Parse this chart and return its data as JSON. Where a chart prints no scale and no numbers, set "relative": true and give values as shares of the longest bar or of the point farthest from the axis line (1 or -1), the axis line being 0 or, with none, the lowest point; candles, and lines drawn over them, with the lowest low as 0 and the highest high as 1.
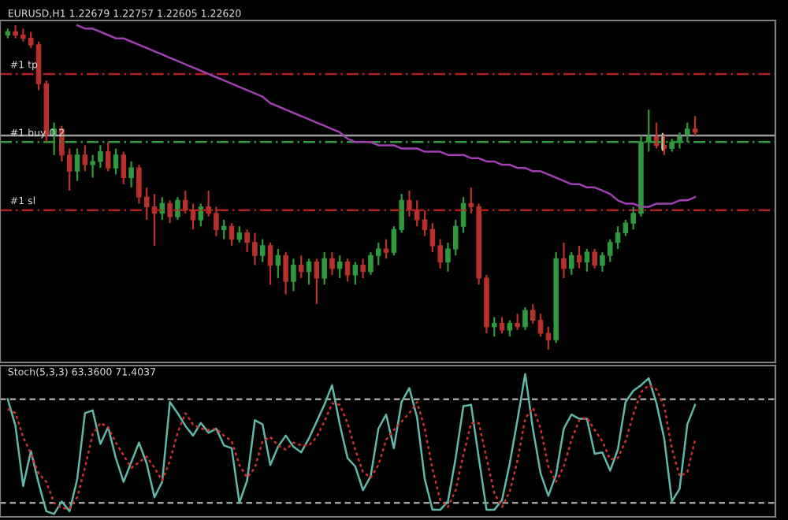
{
  "chart_data": [
    {
      "type": "candlestick",
      "title": "EURUSD,H1 1.22679 1.22757 1.22605 1.22620",
      "relative": true,
      "legend": false,
      "grid": false,
      "categories": [
        null,
        null,
        null,
        null,
        null,
        null,
        null,
        null,
        null,
        null,
        null,
        null,
        null,
        null,
        null,
        null,
        null,
        null,
        null,
        null,
        null,
        null,
        null,
        null,
        null,
        null,
        null,
        null,
        null,
        null,
        null,
        null,
        null,
        null,
        null,
        null,
        null,
        null,
        null,
        null,
        null,
        null,
        null,
        null,
        null,
        null,
        null,
        null,
        null,
        null,
        null,
        null,
        null,
        null,
        null,
        null,
        null,
        null,
        null,
        null,
        null,
        null,
        null,
        null,
        null,
        null,
        null,
        null,
        null,
        null,
        null,
        null,
        null,
        null,
        null,
        null,
        null,
        null,
        null,
        null,
        null,
        null,
        null,
        null,
        null,
        null,
        null,
        null,
        null,
        null
      ],
      "ohlc": [
        [
          0.97,
          0.99,
          0.96,
          0.98
        ],
        [
          0.98,
          1.0,
          0.96,
          0.97
        ],
        [
          0.97,
          0.99,
          0.95,
          0.96
        ],
        [
          0.96,
          0.98,
          0.93,
          0.94
        ],
        [
          0.94,
          0.95,
          0.8,
          0.82
        ],
        [
          0.82,
          0.83,
          0.64,
          0.66
        ],
        [
          0.66,
          0.7,
          0.6,
          0.68
        ],
        [
          0.68,
          0.69,
          0.58,
          0.6
        ],
        [
          0.6,
          0.62,
          0.49,
          0.55
        ],
        [
          0.55,
          0.62,
          0.52,
          0.6
        ],
        [
          0.6,
          0.63,
          0.55,
          0.57
        ],
        [
          0.57,
          0.6,
          0.53,
          0.58
        ],
        [
          0.58,
          0.63,
          0.56,
          0.61
        ],
        [
          0.61,
          0.64,
          0.55,
          0.56
        ],
        [
          0.56,
          0.62,
          0.54,
          0.6
        ],
        [
          0.6,
          0.61,
          0.51,
          0.53
        ],
        [
          0.53,
          0.58,
          0.5,
          0.56
        ],
        [
          0.56,
          0.57,
          0.45,
          0.47
        ],
        [
          0.47,
          0.5,
          0.4,
          0.44
        ],
        [
          0.44,
          0.48,
          0.32,
          0.42
        ],
        [
          0.42,
          0.47,
          0.4,
          0.45
        ],
        [
          0.45,
          0.46,
          0.39,
          0.41
        ],
        [
          0.41,
          0.47,
          0.4,
          0.46
        ],
        [
          0.46,
          0.49,
          0.42,
          0.43
        ],
        [
          0.43,
          0.45,
          0.37,
          0.4
        ],
        [
          0.4,
          0.45,
          0.38,
          0.44
        ],
        [
          0.44,
          0.49,
          0.41,
          0.42
        ],
        [
          0.42,
          0.44,
          0.35,
          0.37
        ],
        [
          0.37,
          0.4,
          0.34,
          0.38
        ],
        [
          0.38,
          0.39,
          0.32,
          0.34
        ],
        [
          0.34,
          0.38,
          0.33,
          0.36
        ],
        [
          0.36,
          0.37,
          0.3,
          0.33
        ],
        [
          0.33,
          0.36,
          0.26,
          0.29
        ],
        [
          0.29,
          0.34,
          0.27,
          0.32
        ],
        [
          0.32,
          0.33,
          0.2,
          0.26
        ],
        [
          0.26,
          0.31,
          0.22,
          0.29
        ],
        [
          0.29,
          0.3,
          0.17,
          0.21
        ],
        [
          0.21,
          0.28,
          0.18,
          0.26
        ],
        [
          0.26,
          0.29,
          0.22,
          0.24
        ],
        [
          0.24,
          0.28,
          0.2,
          0.27
        ],
        [
          0.27,
          0.28,
          0.14,
          0.22
        ],
        [
          0.22,
          0.3,
          0.2,
          0.28
        ],
        [
          0.28,
          0.3,
          0.23,
          0.25
        ],
        [
          0.25,
          0.29,
          0.22,
          0.27
        ],
        [
          0.27,
          0.28,
          0.21,
          0.23
        ],
        [
          0.23,
          0.27,
          0.2,
          0.26
        ],
        [
          0.26,
          0.28,
          0.22,
          0.24
        ],
        [
          0.24,
          0.3,
          0.23,
          0.29
        ],
        [
          0.29,
          0.33,
          0.26,
          0.31
        ],
        [
          0.31,
          0.34,
          0.28,
          0.3
        ],
        [
          0.3,
          0.38,
          0.29,
          0.37
        ],
        [
          0.37,
          0.48,
          0.36,
          0.46
        ],
        [
          0.46,
          0.49,
          0.41,
          0.43
        ],
        [
          0.43,
          0.46,
          0.38,
          0.4
        ],
        [
          0.4,
          0.43,
          0.35,
          0.37
        ],
        [
          0.37,
          0.39,
          0.3,
          0.32
        ],
        [
          0.32,
          0.34,
          0.25,
          0.27
        ],
        [
          0.27,
          0.33,
          0.24,
          0.31
        ],
        [
          0.31,
          0.4,
          0.29,
          0.38
        ],
        [
          0.38,
          0.47,
          0.36,
          0.45
        ],
        [
          0.45,
          0.5,
          0.42,
          0.44
        ],
        [
          0.44,
          0.45,
          0.2,
          0.22
        ],
        [
          0.22,
          0.23,
          0.05,
          0.07
        ],
        [
          0.07,
          0.1,
          0.04,
          0.08
        ],
        [
          0.08,
          0.1,
          0.05,
          0.06
        ],
        [
          0.06,
          0.09,
          0.04,
          0.08
        ],
        [
          0.08,
          0.11,
          0.06,
          0.07
        ],
        [
          0.07,
          0.13,
          0.06,
          0.12
        ],
        [
          0.12,
          0.14,
          0.08,
          0.09
        ],
        [
          0.09,
          0.11,
          0.04,
          0.05
        ],
        [
          0.05,
          0.07,
          0.0,
          0.03
        ],
        [
          0.03,
          0.3,
          0.02,
          0.28
        ],
        [
          0.28,
          0.33,
          0.22,
          0.25
        ],
        [
          0.25,
          0.3,
          0.23,
          0.29
        ],
        [
          0.29,
          0.32,
          0.25,
          0.27
        ],
        [
          0.27,
          0.31,
          0.24,
          0.3
        ],
        [
          0.3,
          0.31,
          0.25,
          0.26
        ],
        [
          0.26,
          0.3,
          0.24,
          0.29
        ],
        [
          0.29,
          0.34,
          0.27,
          0.33
        ],
        [
          0.33,
          0.38,
          0.31,
          0.36
        ],
        [
          0.36,
          0.4,
          0.35,
          0.39
        ],
        [
          0.39,
          0.44,
          0.37,
          0.42
        ],
        [
          0.42,
          0.66,
          0.41,
          0.64
        ],
        [
          0.64,
          0.74,
          0.61,
          0.66
        ],
        [
          0.66,
          0.7,
          0.62,
          0.63
        ],
        [
          0.63,
          0.66,
          0.6,
          0.62
        ],
        [
          0.62,
          0.65,
          0.61,
          0.64
        ],
        [
          0.64,
          0.67,
          0.62,
          0.66
        ],
        [
          0.66,
          0.7,
          0.64,
          0.68
        ],
        [
          0.68,
          0.72,
          0.66,
          0.67
        ]
      ],
      "colors": [
        "#2f9a3c",
        "#b8312b",
        "#b8312b",
        "#b8312b",
        "#b8312b",
        "#b8312b",
        "#2f9a3c",
        "#b8312b",
        "#b8312b",
        "#2f9a3c",
        "#b8312b",
        "#2f9a3c",
        "#2f9a3c",
        "#b8312b",
        "#2f9a3c",
        "#b8312b",
        "#2f9a3c",
        "#b8312b",
        "#b8312b",
        "#b8312b",
        "#2f9a3c",
        "#b8312b",
        "#2f9a3c",
        "#b8312b",
        "#b8312b",
        "#2f9a3c",
        "#b8312b",
        "#b8312b",
        "#2f9a3c",
        "#b8312b",
        "#2f9a3c",
        "#b8312b",
        "#b8312b",
        "#2f9a3c",
        "#b8312b",
        "#2f9a3c",
        "#b8312b",
        "#2f9a3c",
        "#b8312b",
        "#2f9a3c",
        "#b8312b",
        "#2f9a3c",
        "#b8312b",
        "#2f9a3c",
        "#b8312b",
        "#2f9a3c",
        "#b8312b",
        "#2f9a3c",
        "#2f9a3c",
        "#b8312b",
        "#2f9a3c",
        "#2f9a3c",
        "#b8312b",
        "#b8312b",
        "#b8312b",
        "#b8312b",
        "#b8312b",
        "#2f9a3c",
        "#2f9a3c",
        "#2f9a3c",
        "#b8312b",
        "#b8312b",
        "#b8312b",
        "#2f9a3c",
        "#b8312b",
        "#2f9a3c",
        "#b8312b",
        "#2f9a3c",
        "#b8312b",
        "#b8312b",
        "#b8312b",
        "#2f9a3c",
        "#b8312b",
        "#2f9a3c",
        "#b8312b",
        "#2f9a3c",
        "#b8312b",
        "#2f9a3c",
        "#2f9a3c",
        "#2f9a3c",
        "#2f9a3c",
        "#2f9a3c",
        "#2f9a3c",
        "#2f9a3c",
        "#b8312b",
        "#b8312b",
        "#2f9a3c",
        "#2f9a3c",
        "#2f9a3c",
        "#b8312b"
      ],
      "series": [
        {
          "type": "line",
          "color": "#a040b0",
          "line_style": "solid",
          "values": [
            null,
            null,
            null,
            null,
            null,
            null,
            null,
            null,
            null,
            1.0,
            0.99,
            0.99,
            0.98,
            0.97,
            0.96,
            0.96,
            0.95,
            0.94,
            0.93,
            0.92,
            0.91,
            0.9,
            0.89,
            0.88,
            0.87,
            0.86,
            0.85,
            0.84,
            0.83,
            0.82,
            0.81,
            0.8,
            0.79,
            0.78,
            0.76,
            0.75,
            0.74,
            0.73,
            0.72,
            0.71,
            0.7,
            0.69,
            0.68,
            0.67,
            0.65,
            0.64,
            0.64,
            0.64,
            0.63,
            0.63,
            0.63,
            0.62,
            0.62,
            0.62,
            0.61,
            0.61,
            0.61,
            0.6,
            0.6,
            0.6,
            0.59,
            0.59,
            0.58,
            0.58,
            0.57,
            0.57,
            0.56,
            0.56,
            0.55,
            0.55,
            0.54,
            0.53,
            0.52,
            0.51,
            0.51,
            0.5,
            0.5,
            0.49,
            0.48,
            0.46,
            0.45,
            0.45,
            0.44,
            0.44,
            0.45,
            0.45,
            0.45,
            0.46,
            0.46,
            0.47
          ]
        }
      ],
      "ref_lines": [
        {
          "axis": "y",
          "value": 0.85,
          "label": "#1 tp",
          "color": "#b02020",
          "line_style": "dashdot"
        },
        {
          "axis": "y",
          "value": 0.66,
          "label": null,
          "color": "#9a9a9a",
          "line_style": "solid"
        },
        {
          "axis": "y",
          "value": 0.64,
          "label": "#1 buy 0.2",
          "color": "#2f9a3c",
          "line_style": "dashdot"
        },
        {
          "axis": "y",
          "value": 0.43,
          "label": "#1 sl",
          "color": "#b02020",
          "line_style": "dashdot"
        }
      ]
    },
    {
      "type": "line",
      "title": "Stoch(5,3,3) 63.3600 71.4037",
      "relative": true,
      "legend": false,
      "grid": false,
      "categories": [
        null,
        null,
        null,
        null,
        null,
        null,
        null,
        null,
        null,
        null,
        null,
        null,
        null,
        null,
        null,
        null,
        null,
        null,
        null,
        null,
        null,
        null,
        null,
        null,
        null,
        null,
        null,
        null,
        null,
        null,
        null,
        null,
        null,
        null,
        null,
        null,
        null,
        null,
        null,
        null,
        null,
        null,
        null,
        null,
        null,
        null,
        null,
        null,
        null,
        null,
        null,
        null,
        null,
        null,
        null,
        null,
        null,
        null,
        null,
        null,
        null,
        null,
        null,
        null,
        null,
        null,
        null,
        null,
        null,
        null,
        null,
        null,
        null,
        null,
        null,
        null,
        null,
        null,
        null,
        null,
        null,
        null,
        null,
        null,
        null,
        null,
        null,
        null,
        null,
        null
      ],
      "series": [
        {
          "color": "#5fb8a8",
          "line_style": "solid",
          "values": [
            0.82,
            0.63,
            0.2,
            0.45,
            0.22,
            0.02,
            0.0,
            0.09,
            0.02,
            0.25,
            0.72,
            0.74,
            0.5,
            0.62,
            0.4,
            0.23,
            0.37,
            0.51,
            0.36,
            0.12,
            0.23,
            0.8,
            0.72,
            0.63,
            0.56,
            0.65,
            0.58,
            0.61,
            0.49,
            0.47,
            0.08,
            0.24,
            0.67,
            0.64,
            0.35,
            0.48,
            0.56,
            0.48,
            0.44,
            0.54,
            0.66,
            0.78,
            0.92,
            0.64,
            0.4,
            0.34,
            0.17,
            0.27,
            0.61,
            0.71,
            0.47,
            0.8,
            0.9,
            0.69,
            0.25,
            0.03,
            0.03,
            0.09,
            0.4,
            0.77,
            0.78,
            0.4,
            0.03,
            0.03,
            0.1,
            0.36,
            0.67,
            1.0,
            0.61,
            0.29,
            0.13,
            0.28,
            0.61,
            0.71,
            0.68,
            0.68,
            0.43,
            0.44,
            0.31,
            0.46,
            0.8,
            0.88,
            0.92,
            0.97,
            0.79,
            0.54,
            0.09,
            0.18,
            0.64,
            0.78
          ]
        },
        {
          "color": "#d03030",
          "line_style": "dotted",
          "values": [
            0.75,
            0.72,
            0.55,
            0.43,
            0.29,
            0.23,
            0.08,
            0.04,
            0.04,
            0.12,
            0.33,
            0.57,
            0.65,
            0.62,
            0.51,
            0.42,
            0.33,
            0.37,
            0.41,
            0.33,
            0.24,
            0.38,
            0.58,
            0.72,
            0.64,
            0.61,
            0.6,
            0.61,
            0.56,
            0.52,
            0.35,
            0.26,
            0.33,
            0.52,
            0.55,
            0.49,
            0.46,
            0.51,
            0.49,
            0.49,
            0.55,
            0.66,
            0.79,
            0.78,
            0.65,
            0.46,
            0.3,
            0.26,
            0.35,
            0.53,
            0.6,
            0.66,
            0.72,
            0.8,
            0.61,
            0.32,
            0.1,
            0.05,
            0.17,
            0.42,
            0.65,
            0.65,
            0.4,
            0.15,
            0.05,
            0.16,
            0.38,
            0.68,
            0.76,
            0.61,
            0.34,
            0.23,
            0.34,
            0.53,
            0.67,
            0.69,
            0.6,
            0.52,
            0.39,
            0.4,
            0.52,
            0.71,
            0.87,
            0.92,
            0.89,
            0.77,
            0.47,
            0.27,
            0.3,
            0.53
          ]
        }
      ],
      "ref_lines": [
        {
          "axis": "y",
          "value": 0.82,
          "label": null,
          "color": "#a0a0a0",
          "line_style": "dashed"
        },
        {
          "axis": "y",
          "value": 0.08,
          "label": null,
          "color": "#a0a0a0",
          "line_style": "dashed"
        }
      ]
    }
  ]
}
